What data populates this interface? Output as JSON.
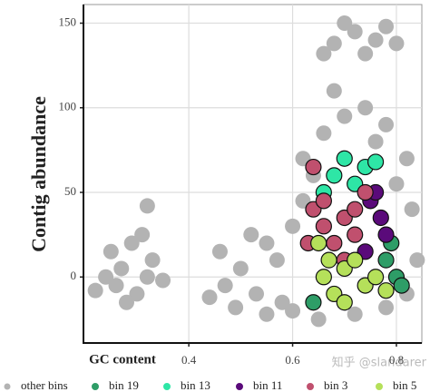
{
  "chart_data": {
    "type": "scatter",
    "x_label": "GC content",
    "y_label": "Contig abundance",
    "watermark": "知乎 @slandarer",
    "xlim": [
      0.197,
      0.849
    ],
    "ylim": [
      -39,
      161
    ],
    "xticks": [
      0.4,
      0.6,
      0.8
    ],
    "yticks": [
      0,
      50,
      100,
      150
    ],
    "grid": true,
    "legend": "bottom",
    "series": [
      {
        "name": "other bins",
        "color": "#b3b3b3",
        "x": [
          0.24,
          0.27,
          0.3,
          0.25,
          0.29,
          0.32,
          0.22,
          0.28,
          0.33,
          0.26,
          0.31,
          0.35,
          0.32,
          0.68,
          0.72,
          0.76,
          0.7,
          0.74,
          0.78,
          0.66,
          0.8,
          0.47,
          0.5,
          0.53,
          0.55,
          0.57,
          0.6,
          0.62,
          0.58,
          0.64,
          0.66,
          0.7,
          0.74,
          0.78,
          0.82,
          0.83,
          0.84,
          0.82,
          0.46,
          0.52,
          0.6,
          0.65,
          0.72,
          0.78,
          0.68,
          0.76,
          0.62,
          0.44,
          0.49,
          0.55,
          0.8
        ],
        "y": [
          0,
          5,
          -10,
          15,
          20,
          0,
          -8,
          -15,
          10,
          -5,
          25,
          -2,
          42,
          138,
          145,
          140,
          150,
          132,
          148,
          132,
          138,
          -5,
          5,
          -10,
          20,
          10,
          30,
          45,
          -15,
          60,
          85,
          95,
          100,
          90,
          70,
          40,
          10,
          -10,
          15,
          25,
          -20,
          -25,
          -22,
          -18,
          110,
          80,
          70,
          -12,
          -18,
          -22,
          55
        ]
      },
      {
        "name": "bin 19",
        "color": "#2e9d67",
        "x": [
          0.8,
          0.79,
          0.64,
          0.81,
          0.78
        ],
        "y": [
          0,
          20,
          -15,
          -5,
          10
        ]
      },
      {
        "name": "bin 13",
        "color": "#2ee6a6",
        "x": [
          0.7,
          0.74,
          0.68,
          0.72,
          0.76,
          0.66
        ],
        "y": [
          70,
          65,
          60,
          55,
          68,
          50
        ]
      },
      {
        "name": "bin 11",
        "color": "#5a0a7a",
        "x": [
          0.75,
          0.77,
          0.78,
          0.74,
          0.76
        ],
        "y": [
          45,
          35,
          25,
          15,
          50
        ]
      },
      {
        "name": "bin 3",
        "color": "#c0506e",
        "x": [
          0.64,
          0.66,
          0.68,
          0.7,
          0.72,
          0.66,
          0.63,
          0.7,
          0.72,
          0.64,
          0.74
        ],
        "y": [
          40,
          30,
          20,
          35,
          25,
          45,
          20,
          10,
          40,
          65,
          50
        ]
      },
      {
        "name": "bin 5",
        "color": "#b5e05a",
        "x": [
          0.66,
          0.7,
          0.74,
          0.68,
          0.72,
          0.76,
          0.65,
          0.7,
          0.78,
          0.67
        ],
        "y": [
          0,
          5,
          -5,
          -10,
          10,
          0,
          20,
          -15,
          -8,
          10
        ]
      }
    ]
  }
}
